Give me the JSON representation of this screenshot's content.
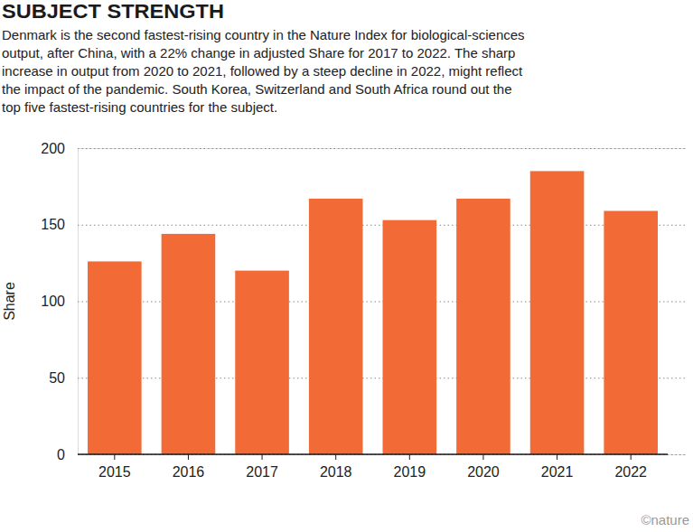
{
  "chart_data": {
    "type": "bar",
    "title": "SUBJECT STRENGTH",
    "subtitle": [
      "Denmark is the second fastest-rising country in the Nature Index for biological-sciences",
      "output, after China, with a 22% change in adjusted Share for 2017 to 2022. The sharp",
      "increase in output from 2020 to 2021, followed by a steep decline in 2022, might reflect",
      "the impact of the pandemic. South Korea, Switzerland and South Africa round out the",
      "top five fastest-rising countries for the subject."
    ],
    "y_label": "Share",
    "categories": [
      "2015",
      "2016",
      "2017",
      "2018",
      "2019",
      "2020",
      "2021",
      "2022"
    ],
    "values": [
      126,
      144,
      120,
      167,
      153,
      167,
      185,
      159
    ],
    "color": "#f26a35",
    "ylim": [
      0,
      200
    ],
    "yticks": [
      0,
      50,
      100,
      150,
      200
    ],
    "grid": true,
    "credit": "©nature"
  }
}
